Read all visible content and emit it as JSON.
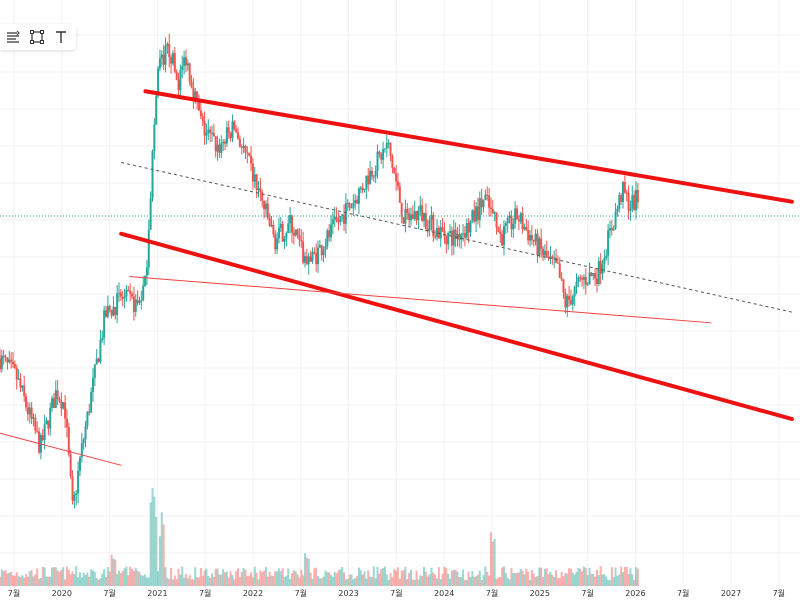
{
  "toolbar": {
    "tools": [
      {
        "name": "text-lines-tool-icon"
      },
      {
        "name": "rectangle-tool-icon"
      },
      {
        "name": "text-tool-icon",
        "glyph": "T"
      }
    ]
  },
  "chart_data": {
    "type": "candlestick",
    "title": "",
    "xlabel": "",
    "ylabel": "",
    "grid": true,
    "x_axis_ticks": [
      "7월",
      "2020",
      "7월",
      "2021",
      "7월",
      "2022",
      "7월",
      "2023",
      "7월",
      "2024",
      "7월",
      "2025",
      "7월",
      "2026",
      "7월",
      "2027",
      "7월"
    ],
    "x_axis_range": [
      "2019-06",
      "2027-09"
    ],
    "up_color": "#26a69a",
    "down_color": "#ef5350",
    "price_path": [
      [
        "2019-06",
        65
      ],
      [
        "2019-08",
        60
      ],
      [
        "2019-11",
        40
      ],
      [
        "2020-01",
        56
      ],
      [
        "2020-02",
        52
      ],
      [
        "2020-03",
        22
      ],
      [
        "2020-04",
        38
      ],
      [
        "2020-07",
        77
      ],
      [
        "2020-09",
        82
      ],
      [
        "2020-11",
        80
      ],
      [
        "2020-12",
        86
      ],
      [
        "2021-01",
        127
      ],
      [
        "2021-01-20",
        148
      ],
      [
        "2021-03",
        152
      ],
      [
        "2021-04",
        142
      ],
      [
        "2021-05",
        150
      ],
      [
        "2021-06",
        140
      ],
      [
        "2021-07",
        130
      ],
      [
        "2021-09",
        124
      ],
      [
        "2021-11",
        130
      ],
      [
        "2022-02",
        112
      ],
      [
        "2022-04",
        98
      ],
      [
        "2022-06",
        103
      ],
      [
        "2022-08",
        91
      ],
      [
        "2022-10",
        97
      ],
      [
        "2022-12",
        104
      ],
      [
        "2023-02",
        110
      ],
      [
        "2023-04",
        118
      ],
      [
        "2023-06",
        125
      ],
      [
        "2023-08",
        104
      ],
      [
        "2023-10",
        106
      ],
      [
        "2023-12",
        101
      ],
      [
        "2024-02",
        99
      ],
      [
        "2024-04",
        102
      ],
      [
        "2024-06",
        110
      ],
      [
        "2024-08",
        99
      ],
      [
        "2024-10",
        105
      ],
      [
        "2024-12",
        98
      ],
      [
        "2025-02",
        92
      ],
      [
        "2025-03",
        90
      ],
      [
        "2025-04",
        80
      ],
      [
        "2025-06",
        87
      ],
      [
        "2025-08",
        89
      ],
      [
        "2025-10",
        104
      ],
      [
        "2025-11",
        112
      ],
      [
        "2025-12",
        108
      ],
      [
        "2026-01",
        110
      ]
    ],
    "volume_spikes": [
      [
        "2021-01",
        100
      ],
      [
        "2021-02",
        80
      ],
      [
        "2024-07",
        58
      ],
      [
        "2022-08",
        42
      ],
      [
        "2020-08",
        38
      ]
    ],
    "annotations": [
      {
        "type": "trendline",
        "style": "thick",
        "color": "#ee1111",
        "from": [
          "2020-12",
          140
        ],
        "to": [
          "2027-08",
          109
        ],
        "label": "channel-upper"
      },
      {
        "type": "trendline",
        "style": "thick",
        "color": "#ee1111",
        "from": [
          "2020-09",
          100
        ],
        "to": [
          "2027-08",
          48
        ],
        "label": "channel-lower"
      },
      {
        "type": "trendline",
        "style": "dashed",
        "color": "#555555",
        "from": [
          "2020-09",
          120
        ],
        "to": [
          "2027-08",
          78
        ],
        "label": "channel-middle"
      },
      {
        "type": "trendline",
        "style": "thin",
        "color": "#f04040",
        "from": [
          "2020-10",
          88
        ],
        "to": [
          "2026-10",
          75
        ],
        "label": "support"
      },
      {
        "type": "trendline",
        "style": "thin",
        "color": "#f04040",
        "from": [
          "2019-06",
          44
        ],
        "to": [
          "2020-09",
          35
        ],
        "label": "support-old"
      },
      {
        "type": "horizontal",
        "style": "dotted",
        "color": "#26a69a",
        "value": 105,
        "label": "last-price"
      }
    ]
  }
}
